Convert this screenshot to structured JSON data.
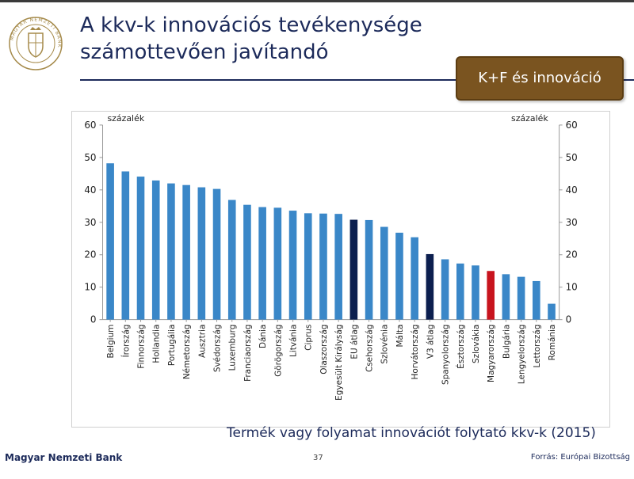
{
  "slide": {
    "title_line1": "A kkv-k innovációs tevékenysége",
    "title_line2": "számottevően javítandó",
    "badge": "K+F és innováció",
    "subtitle": "Termék vagy folyamat innovációt folytató kkv-k (2015)",
    "logo_text": "MAGYAR NEMZETI BANK"
  },
  "footer": {
    "bank": "Magyar Nemzeti Bank",
    "page": "37",
    "source": "Forrás: Európai Bizottság"
  },
  "colors": {
    "default_bar": "#3a87c8",
    "average_bar": "#0c1f4f",
    "hungary_bar": "#c8141e",
    "title": "#1c2a5a",
    "badge_bg": "#7a5420"
  },
  "chart_data": {
    "type": "bar",
    "y_unit_left": "százalék",
    "y_unit_right": "százalék",
    "ylim": [
      0,
      60
    ],
    "yticks": [
      "0",
      "10",
      "20",
      "30",
      "40",
      "50",
      "60"
    ],
    "grid": false,
    "highlight_average": [
      "EU átlag",
      "V3 átlag"
    ],
    "highlight_hungary": [
      "Magyarország"
    ],
    "categories": [
      "Belgium",
      "Írország",
      "Finnország",
      "Hollandia",
      "Portugália",
      "Németország",
      "Ausztria",
      "Svédország",
      "Luxemburg",
      "Franciaország",
      "Dánia",
      "Görögország",
      "Litvánia",
      "Ciprus",
      "Olaszország",
      "Egyesült Királyság",
      "EU átlag",
      "Csehország",
      "Szlovénia",
      "Málta",
      "Horvátország",
      "V3 átlag",
      "Spanyolország",
      "Észtország",
      "Szlovákia",
      "Magyarország",
      "Bulgária",
      "Lengyelország",
      "Lettország",
      "Románia"
    ],
    "values": [
      48.2,
      45.7,
      44.1,
      42.9,
      42.0,
      41.5,
      40.8,
      40.3,
      36.9,
      35.4,
      34.7,
      34.5,
      33.6,
      32.8,
      32.7,
      32.6,
      30.8,
      30.7,
      28.6,
      26.8,
      25.4,
      20.2,
      18.6,
      17.3,
      16.7,
      15.0,
      14.0,
      13.2,
      11.9,
      4.9
    ]
  }
}
